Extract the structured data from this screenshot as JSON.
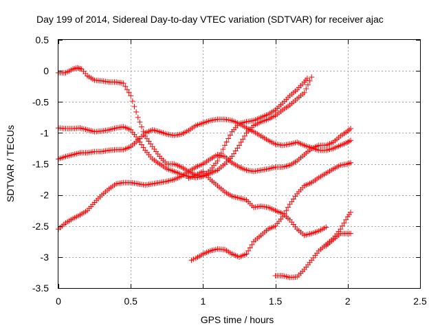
{
  "chart_data": {
    "type": "scatter",
    "title": "Day 199 of 2014, Sidereal Day-to-day VTEC variation (SDTVAR) for receiver ajac",
    "xlabel": "GPS time / hours",
    "ylabel": "SDTVAR / TECUs",
    "xlim": [
      0,
      2.5
    ],
    "ylim": [
      -3.5,
      0.5
    ],
    "xticks": [
      0,
      0.5,
      1,
      1.5,
      2,
      2.5
    ],
    "xtick_labels": [
      "0",
      "0.5",
      "1",
      "1.5",
      "2",
      "2.5"
    ],
    "yticks": [
      0.5,
      0,
      -0.5,
      -1,
      -1.5,
      -2,
      -2.5,
      -3,
      -3.5
    ],
    "ytick_labels": [
      "0.5",
      "0",
      "-0.5",
      "-1",
      "-1.5",
      "-2",
      "-2.5",
      "-3",
      "-3.5"
    ],
    "grid": true,
    "legend": "none",
    "marker": "+",
    "color": "#ff0000",
    "series": [
      {
        "x": [
          0,
          0.05,
          0.1,
          0.13,
          0.16,
          0.2,
          0.25,
          0.3,
          0.35,
          0.4,
          0.45,
          0.5,
          0.55,
          0.6,
          0.65,
          0.7,
          0.75,
          0.8,
          0.85,
          0.9,
          0.95,
          1.0,
          1.05,
          1.1,
          1.15,
          1.2,
          1.25,
          1.3,
          1.35,
          1.4,
          1.45,
          1.5,
          1.55,
          1.6,
          1.65,
          1.7,
          1.72
        ],
        "y": [
          -0.03,
          -0.03,
          0.03,
          0.05,
          0.03,
          -0.08,
          -0.15,
          -0.16,
          -0.18,
          -0.18,
          -0.2,
          -0.4,
          -0.75,
          -1.05,
          -1.22,
          -1.38,
          -1.5,
          -1.5,
          -1.55,
          -1.62,
          -1.68,
          -1.7,
          -1.6,
          -1.45,
          -1.2,
          -0.98,
          -0.85,
          -0.82,
          -0.8,
          -0.75,
          -0.7,
          -0.63,
          -0.52,
          -0.4,
          -0.3,
          -0.18,
          -0.12
        ]
      },
      {
        "x": [
          0,
          0.05,
          0.1,
          0.15,
          0.2,
          0.25,
          0.3,
          0.35,
          0.4,
          0.45,
          0.5,
          0.55,
          0.6,
          0.65,
          0.7,
          0.75,
          0.8,
          0.85,
          0.9,
          0.95,
          1.0,
          1.05,
          1.1,
          1.15,
          1.2,
          1.25,
          1.3,
          1.35,
          1.4,
          1.45,
          1.5,
          1.55,
          1.6,
          1.65,
          1.7,
          1.75
        ],
        "y": [
          -0.92,
          -0.93,
          -0.93,
          -0.92,
          -0.95,
          -0.98,
          -0.97,
          -0.95,
          -0.92,
          -0.9,
          -0.95,
          -1.1,
          -1.28,
          -1.42,
          -1.5,
          -1.58,
          -1.62,
          -1.67,
          -1.7,
          -1.72,
          -1.7,
          -1.65,
          -1.6,
          -1.5,
          -1.38,
          -1.2,
          -1.0,
          -0.88,
          -0.82,
          -0.78,
          -0.72,
          -0.63,
          -0.55,
          -0.45,
          -0.35,
          -0.1
        ]
      },
      {
        "x": [
          0,
          0.05,
          0.1,
          0.15,
          0.2,
          0.25,
          0.3,
          0.35,
          0.4,
          0.45,
          0.5,
          0.55,
          0.6,
          0.65,
          0.7,
          0.75,
          0.8,
          0.85,
          0.9,
          0.95,
          1.0,
          1.05,
          1.1,
          1.15,
          1.2,
          1.25,
          1.3,
          1.35,
          1.4,
          1.45,
          1.5,
          1.55,
          1.6,
          1.65,
          1.7,
          1.75,
          1.8,
          1.85,
          1.9,
          1.95,
          2.0,
          2.02
        ],
        "y": [
          -1.42,
          -1.38,
          -1.35,
          -1.32,
          -1.32,
          -1.3,
          -1.3,
          -1.28,
          -1.27,
          -1.27,
          -1.22,
          -1.12,
          -1.0,
          -0.95,
          -0.98,
          -1.02,
          -1.04,
          -1.02,
          -0.96,
          -0.88,
          -0.84,
          -0.8,
          -0.78,
          -0.78,
          -0.8,
          -0.85,
          -0.92,
          -0.98,
          -1.05,
          -1.12,
          -1.18,
          -1.2,
          -1.18,
          -1.15,
          -1.2,
          -1.24,
          -1.28,
          -1.28,
          -1.25,
          -1.2,
          -1.15,
          -1.12
        ]
      },
      {
        "x": [
          0,
          0.05,
          0.1,
          0.15,
          0.2,
          0.25,
          0.3,
          0.35,
          0.4,
          0.45,
          0.5,
          0.55,
          0.6,
          0.65,
          0.7,
          0.75,
          0.8,
          0.85,
          0.9,
          0.95,
          1.0,
          1.05,
          1.1,
          1.15,
          1.2,
          1.25,
          1.3,
          1.35,
          1.4,
          1.45,
          1.5,
          1.55,
          1.6,
          1.65,
          1.7,
          1.75,
          1.8,
          1.85,
          1.9,
          1.95,
          2.0,
          2.02
        ],
        "y": [
          -2.55,
          -2.45,
          -2.38,
          -2.32,
          -2.25,
          -2.12,
          -2.0,
          -1.9,
          -1.82,
          -1.8,
          -1.8,
          -1.82,
          -1.84,
          -1.82,
          -1.8,
          -1.78,
          -1.75,
          -1.7,
          -1.62,
          -1.55,
          -1.5,
          -1.42,
          -1.35,
          -1.38,
          -1.48,
          -1.55,
          -1.6,
          -1.62,
          -1.6,
          -1.58,
          -1.55,
          -1.55,
          -1.52,
          -1.45,
          -1.35,
          -1.25,
          -1.2,
          -1.2,
          -1.15,
          -1.05,
          -0.97,
          -0.93
        ]
      },
      {
        "x": [
          0.9,
          0.95,
          1.0,
          1.05,
          1.1,
          1.15,
          1.2,
          1.25,
          1.3,
          1.35,
          1.4,
          1.45,
          1.5,
          1.55,
          1.6,
          1.65,
          1.7,
          1.75,
          1.8,
          1.85
        ],
        "y": [
          -1.73,
          -1.68,
          -1.62,
          -1.75,
          -1.85,
          -1.95,
          -2.02,
          -2.05,
          -2.08,
          -2.2,
          -2.18,
          -2.2,
          -2.25,
          -2.3,
          -2.4,
          -2.55,
          -2.65,
          -2.62,
          -2.58,
          -2.52
        ]
      },
      {
        "x": [
          0.92,
          0.95,
          1.0,
          1.05,
          1.1,
          1.15,
          1.2,
          1.25,
          1.3,
          1.35,
          1.4,
          1.45,
          1.5,
          1.55,
          1.6,
          1.65,
          1.7,
          1.75,
          1.8,
          1.85,
          1.9,
          1.95,
          2.0,
          2.02
        ],
        "y": [
          -3.05,
          -3.02,
          -2.95,
          -2.9,
          -2.87,
          -2.88,
          -2.95,
          -3.0,
          -2.95,
          -2.75,
          -2.65,
          -2.55,
          -2.5,
          -2.35,
          -2.15,
          -1.98,
          -1.85,
          -1.8,
          -1.72,
          -1.65,
          -1.58,
          -1.52,
          -1.5,
          -1.48
        ]
      },
      {
        "x": [
          1.5,
          1.55,
          1.6,
          1.65,
          1.7,
          1.75,
          1.8,
          1.85,
          1.9,
          1.95,
          2.0,
          2.02
        ],
        "y": [
          -3.3,
          -3.3,
          -3.33,
          -3.32,
          -3.2,
          -3.05,
          -2.9,
          -2.8,
          -2.7,
          -2.55,
          -2.35,
          -2.28
        ]
      },
      {
        "x": [
          1.85,
          1.9,
          1.95,
          2.0,
          2.02
        ],
        "y": [
          -2.82,
          -2.72,
          -2.62,
          -2.62,
          -2.62
        ]
      }
    ]
  }
}
